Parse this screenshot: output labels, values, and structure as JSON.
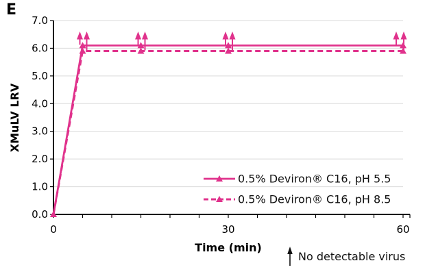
{
  "panel_label": "E",
  "colors": {
    "accent": "#E0328C",
    "grid": "#DADADA",
    "axis": "#000000",
    "text": "#111111"
  },
  "chart_data": {
    "type": "line",
    "title": "",
    "xlabel": "Time (min)",
    "ylabel": "XMuLV LRV",
    "xlim": [
      0,
      60
    ],
    "ylim": [
      0.0,
      7.0
    ],
    "grid": "horizontal",
    "legend_position": "inside-bottom-right",
    "y_tick_labels": [
      "0.0",
      "1.0",
      "2.0",
      "3.0",
      "4.0",
      "5.0",
      "6.0",
      "7.0"
    ],
    "x_ticks": {
      "major": [
        0,
        30,
        60
      ],
      "minor_step": 5
    },
    "x": [
      0,
      5,
      15,
      30,
      60
    ],
    "series": [
      {
        "name": "0.5% Deviron® C16, pH 5.5",
        "line_style": "solid",
        "marker": "triangle-up",
        "values": [
          0.0,
          6.1,
          6.1,
          6.1,
          6.1
        ]
      },
      {
        "name": "0.5% Deviron® C16, pH 8.5",
        "line_style": "dashed",
        "marker": "triangle-up",
        "values": [
          0.0,
          5.9,
          5.9,
          5.9,
          5.9
        ]
      }
    ],
    "annotations": {
      "no_virus_detected_at_x": [
        5,
        15,
        30,
        60
      ],
      "arrow_symbol": "↑",
      "footnote": "No detectable virus"
    }
  }
}
